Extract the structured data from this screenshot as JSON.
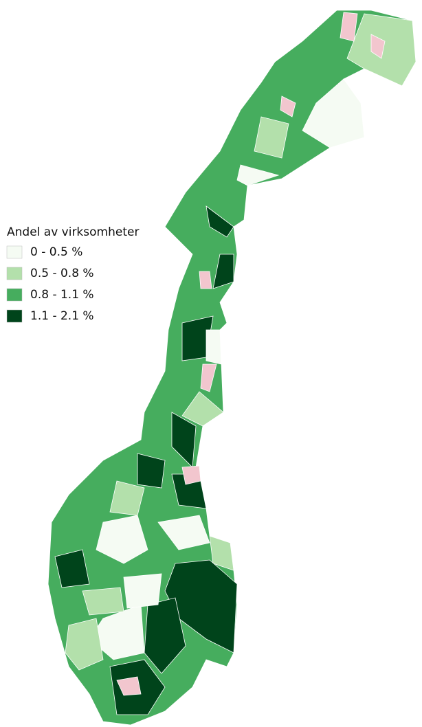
{
  "legend": {
    "title": "Andel av virksomheter",
    "items": [
      {
        "label": "0 - 0.5 %",
        "color": "#f5fbf3"
      },
      {
        "label": "0.5 - 0.8 %",
        "color": "#b3e0ab"
      },
      {
        "label": "0.8 - 1.1 %",
        "color": "#46ad5e"
      },
      {
        "label": "1.1 - 2.1 %",
        "color": "#00441b"
      }
    ]
  }
}
